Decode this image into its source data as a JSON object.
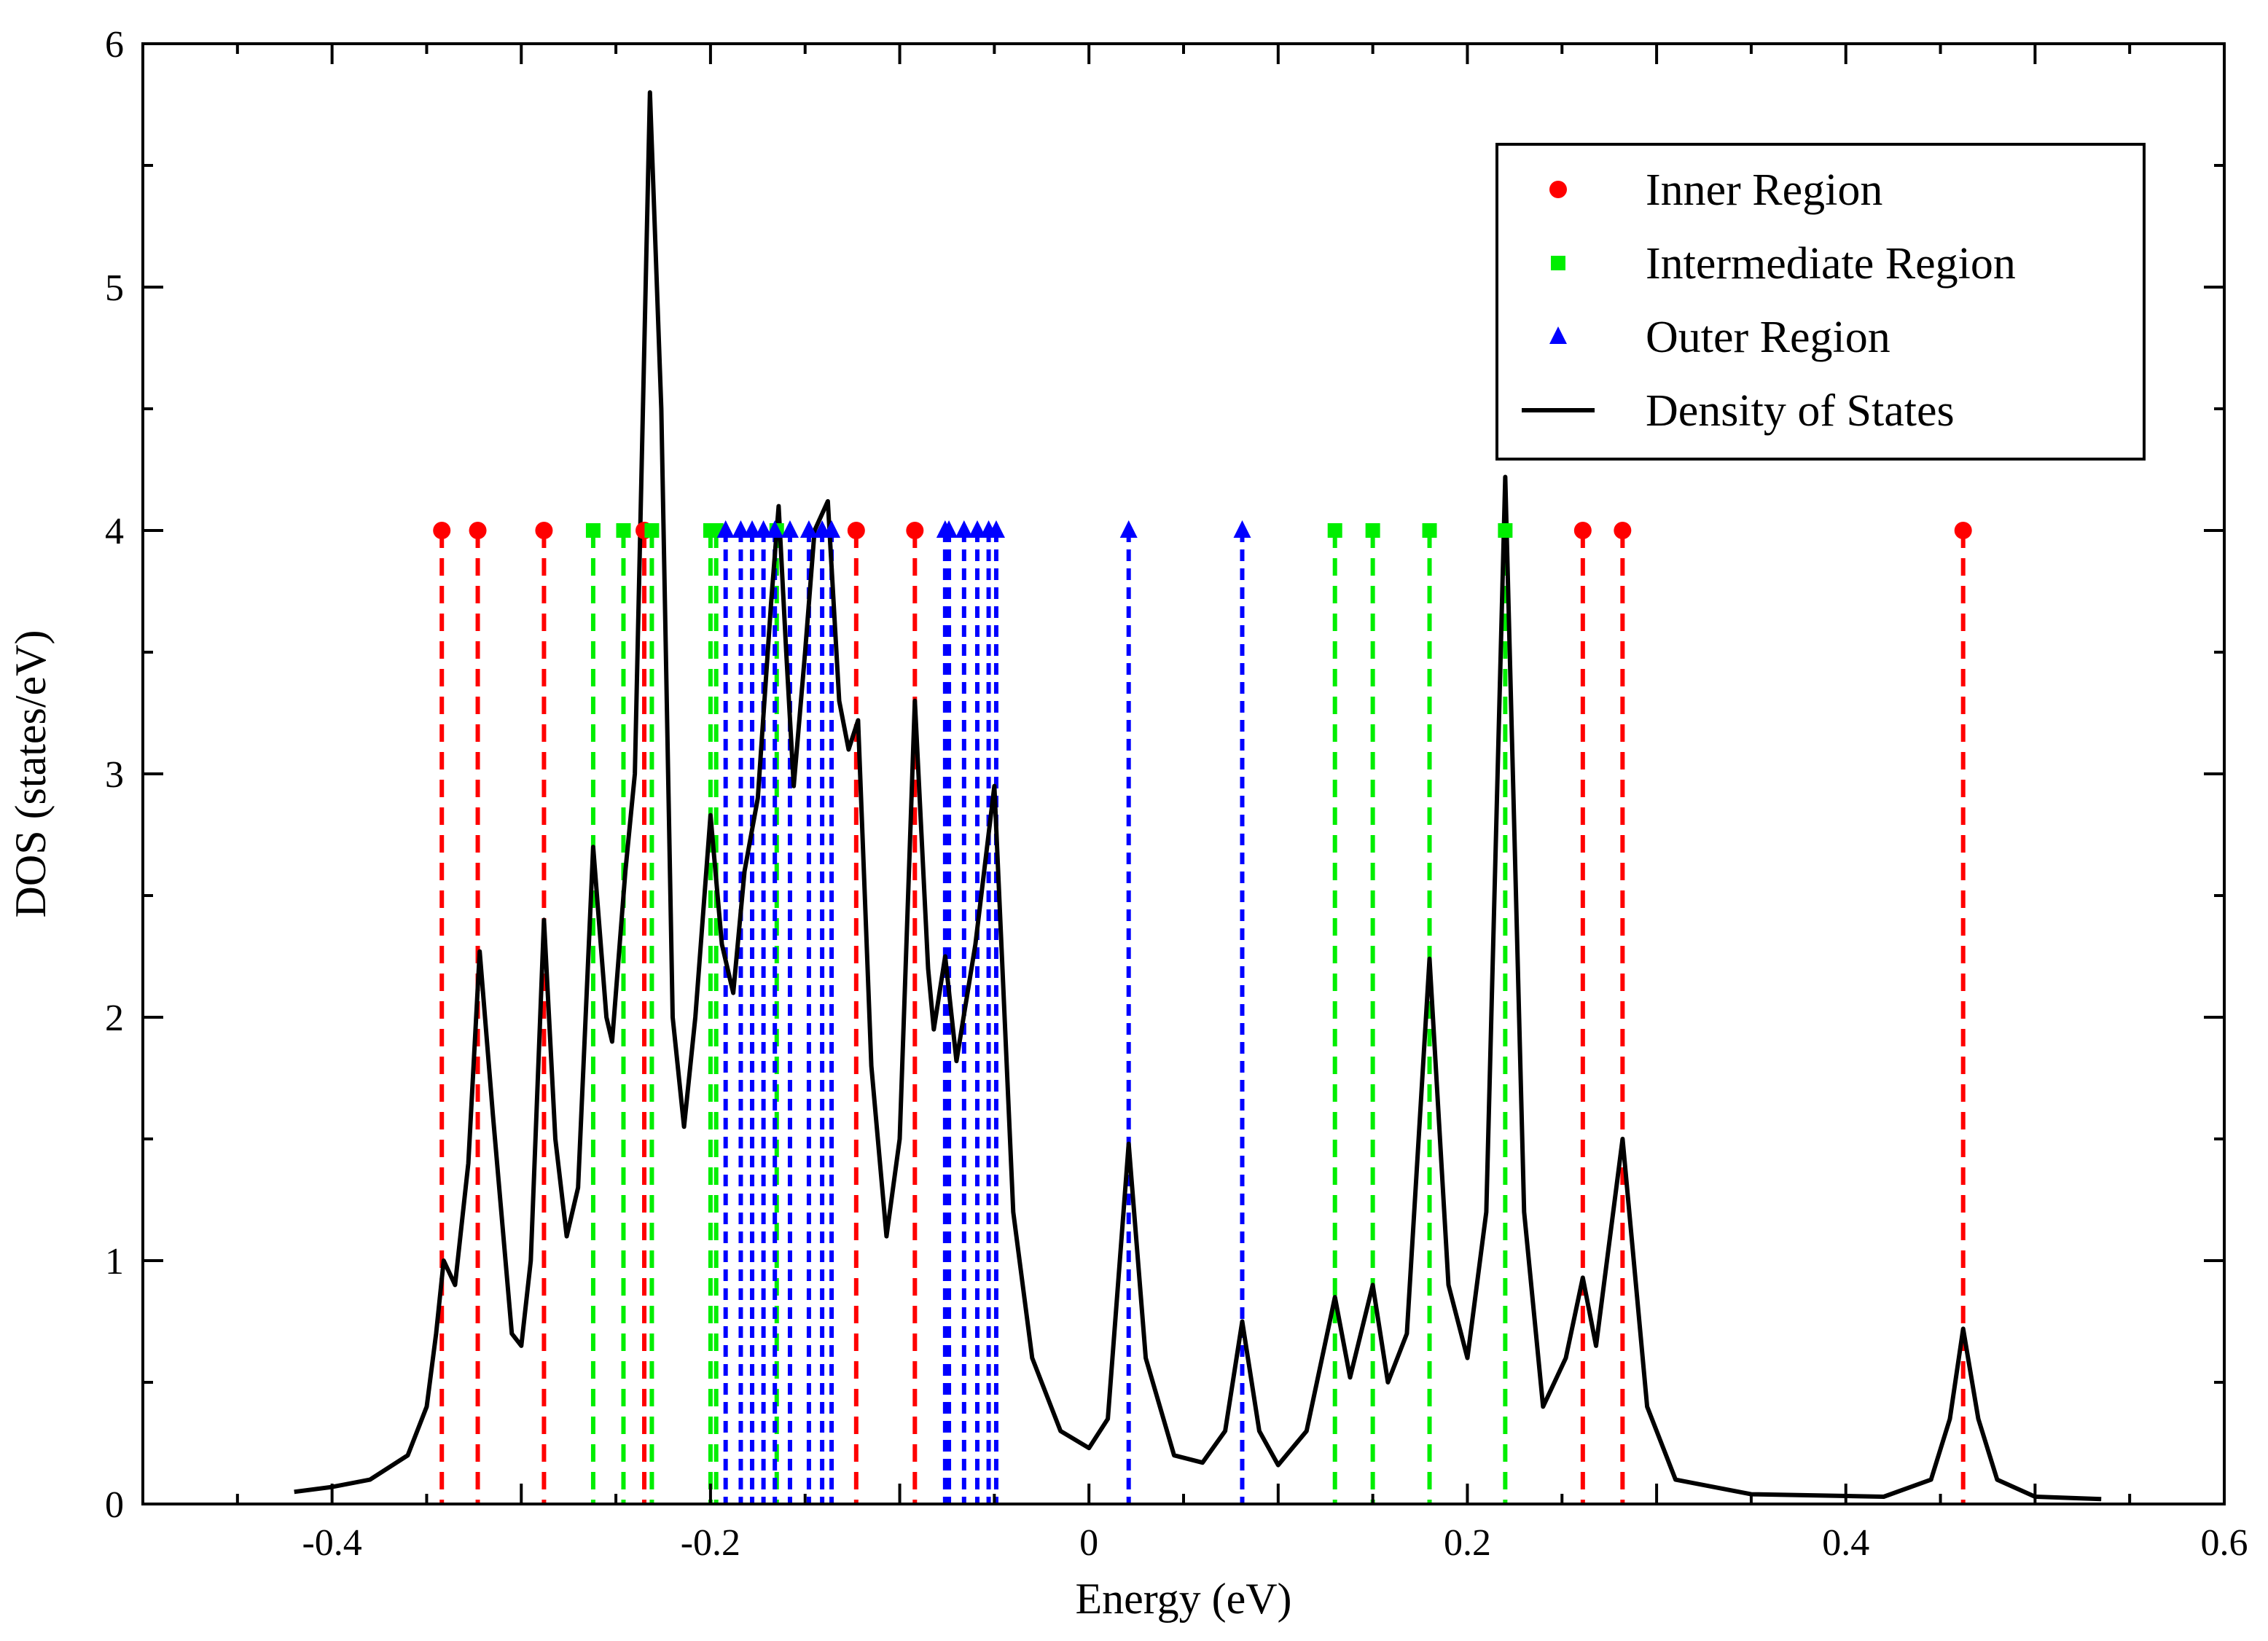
{
  "chart_data": {
    "type": "line",
    "title": "",
    "xlabel": "Energy (eV)",
    "ylabel": "DOS (states/eV)",
    "xlim": [
      -0.5,
      0.6
    ],
    "ylim": [
      0,
      6
    ],
    "x_ticks": [
      -0.4,
      -0.2,
      0,
      0.2,
      0.4,
      0.6
    ],
    "x_tick_labels": [
      "-0.4",
      "-0.2",
      "0",
      "0.2",
      "0.4",
      "0.6"
    ],
    "y_ticks": [
      0,
      1,
      2,
      3,
      4,
      5,
      6
    ],
    "y_tick_labels": [
      "0",
      "1",
      "2",
      "3",
      "4",
      "5",
      "6"
    ],
    "grid": false,
    "legend_position": "top-right",
    "marker_level": 4,
    "series": [
      {
        "name": "Inner Region",
        "kind": "levels",
        "marker": "circle",
        "color": "#ff0000",
        "energies": [
          -0.342,
          -0.323,
          -0.288,
          -0.235,
          -0.123,
          -0.092,
          0.261,
          0.282,
          0.462
        ]
      },
      {
        "name": "Intermediate Region",
        "kind": "levels",
        "marker": "square",
        "color": "#00ee00",
        "energies": [
          -0.262,
          -0.246,
          -0.231,
          -0.2,
          -0.197,
          -0.165,
          0.13,
          0.15,
          0.18,
          0.22
        ]
      },
      {
        "name": "Outer Region",
        "kind": "levels",
        "marker": "triangle",
        "color": "#0000ff",
        "energies": [
          -0.192,
          -0.184,
          -0.178,
          -0.172,
          -0.166,
          -0.158,
          -0.148,
          -0.141,
          -0.136,
          -0.076,
          -0.074,
          -0.066,
          -0.059,
          -0.053,
          -0.049,
          0.021,
          0.081
        ]
      },
      {
        "name": "Density of States",
        "kind": "line",
        "color": "#000000",
        "points": [
          [
            -0.42,
            0.05
          ],
          [
            -0.4,
            0.07
          ],
          [
            -0.38,
            0.1
          ],
          [
            -0.36,
            0.2
          ],
          [
            -0.35,
            0.4
          ],
          [
            -0.345,
            0.7
          ],
          [
            -0.341,
            1.0
          ],
          [
            -0.335,
            0.9
          ],
          [
            -0.328,
            1.4
          ],
          [
            -0.322,
            2.27
          ],
          [
            -0.315,
            1.6
          ],
          [
            -0.305,
            0.7
          ],
          [
            -0.3,
            0.65
          ],
          [
            -0.295,
            1.0
          ],
          [
            -0.288,
            2.4
          ],
          [
            -0.282,
            1.5
          ],
          [
            -0.276,
            1.1
          ],
          [
            -0.27,
            1.3
          ],
          [
            -0.262,
            2.7
          ],
          [
            -0.255,
            2.0
          ],
          [
            -0.252,
            1.9
          ],
          [
            -0.245,
            2.6
          ],
          [
            -0.24,
            3.0
          ],
          [
            -0.232,
            5.8
          ],
          [
            -0.226,
            4.5
          ],
          [
            -0.22,
            2.0
          ],
          [
            -0.214,
            1.55
          ],
          [
            -0.208,
            2.0
          ],
          [
            -0.2,
            2.83
          ],
          [
            -0.194,
            2.3
          ],
          [
            -0.188,
            2.1
          ],
          [
            -0.182,
            2.6
          ],
          [
            -0.175,
            2.9
          ],
          [
            -0.168,
            3.7
          ],
          [
            -0.164,
            4.1
          ],
          [
            -0.16,
            3.5
          ],
          [
            -0.156,
            2.95
          ],
          [
            -0.15,
            3.5
          ],
          [
            -0.145,
            4.0
          ],
          [
            -0.138,
            4.12
          ],
          [
            -0.132,
            3.3
          ],
          [
            -0.127,
            3.1
          ],
          [
            -0.122,
            3.22
          ],
          [
            -0.115,
            1.8
          ],
          [
            -0.107,
            1.1
          ],
          [
            -0.1,
            1.5
          ],
          [
            -0.092,
            3.3
          ],
          [
            -0.085,
            2.2
          ],
          [
            -0.082,
            1.95
          ],
          [
            -0.076,
            2.25
          ],
          [
            -0.07,
            1.82
          ],
          [
            -0.06,
            2.3
          ],
          [
            -0.05,
            2.95
          ],
          [
            -0.04,
            1.2
          ],
          [
            -0.03,
            0.6
          ],
          [
            -0.015,
            0.3
          ],
          [
            0.0,
            0.23
          ],
          [
            0.01,
            0.35
          ],
          [
            0.021,
            1.48
          ],
          [
            0.03,
            0.6
          ],
          [
            0.045,
            0.2
          ],
          [
            0.06,
            0.17
          ],
          [
            0.072,
            0.3
          ],
          [
            0.081,
            0.75
          ],
          [
            0.09,
            0.3
          ],
          [
            0.1,
            0.16
          ],
          [
            0.115,
            0.3
          ],
          [
            0.13,
            0.85
          ],
          [
            0.138,
            0.52
          ],
          [
            0.15,
            0.9
          ],
          [
            0.158,
            0.5
          ],
          [
            0.168,
            0.7
          ],
          [
            0.18,
            2.24
          ],
          [
            0.19,
            0.9
          ],
          [
            0.2,
            0.6
          ],
          [
            0.21,
            1.2
          ],
          [
            0.22,
            4.22
          ],
          [
            0.23,
            1.2
          ],
          [
            0.24,
            0.4
          ],
          [
            0.252,
            0.6
          ],
          [
            0.261,
            0.93
          ],
          [
            0.268,
            0.65
          ],
          [
            0.282,
            1.5
          ],
          [
            0.295,
            0.4
          ],
          [
            0.31,
            0.1
          ],
          [
            0.35,
            0.04
          ],
          [
            0.42,
            0.03
          ],
          [
            0.445,
            0.1
          ],
          [
            0.455,
            0.35
          ],
          [
            0.462,
            0.72
          ],
          [
            0.47,
            0.35
          ],
          [
            0.48,
            0.1
          ],
          [
            0.5,
            0.03
          ],
          [
            0.535,
            0.02
          ]
        ]
      }
    ]
  }
}
